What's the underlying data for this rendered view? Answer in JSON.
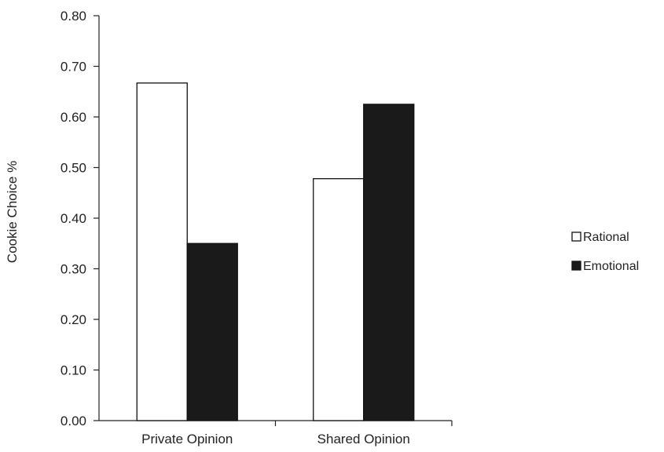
{
  "chart_data": {
    "type": "bar",
    "title": "",
    "xlabel": "",
    "ylabel": "Cookie Choice %",
    "categories": [
      "Private Opinion",
      "Shared Opinion"
    ],
    "ylim": [
      0,
      0.8
    ],
    "yticks": [
      "0.00",
      "0.10",
      "0.20",
      "0.30",
      "0.40",
      "0.50",
      "0.60",
      "0.70",
      "0.80"
    ],
    "grid": false,
    "legend_position": "right",
    "series": [
      {
        "name": "Rational",
        "values": [
          0.667,
          0.478
        ],
        "color": "#ffffff"
      },
      {
        "name": "Emotional",
        "values": [
          0.35,
          0.625
        ],
        "color": "#1a1a1a"
      }
    ]
  }
}
